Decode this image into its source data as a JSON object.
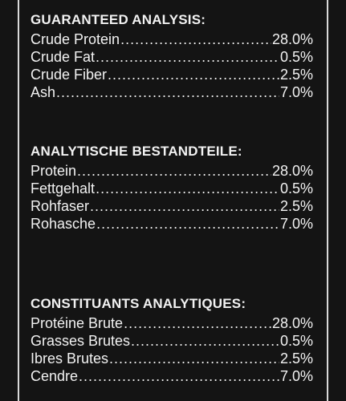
{
  "background_color": "#141414",
  "text_color": "#f2f2f2",
  "sections": [
    {
      "title": "GUARANTEED ANALYSIS:",
      "rows": [
        {
          "label": "Crude Protein",
          "value": "28.0%"
        },
        {
          "label": "Crude Fat",
          "value": "0.5%"
        },
        {
          "label": "Crude Fiber",
          "value": "2.5%"
        },
        {
          "label": "Ash",
          "value": "7.0%"
        }
      ]
    },
    {
      "title": "ANALYTISCHE BESTANDTEILE:",
      "rows": [
        {
          "label": "Protein",
          "value": "28.0%"
        },
        {
          "label": "Fettgehalt",
          "value": "0.5%"
        },
        {
          "label": "Rohfaser",
          "value": "2.5%"
        },
        {
          "label": "Rohasche",
          "value": "7.0%"
        }
      ]
    },
    {
      "title": "CONSTITUANTS ANALYTIQUES:",
      "rows": [
        {
          "label": "Protéine Brute",
          "value": "28.0%"
        },
        {
          "label": "Grasses Brutes",
          "value": "0.5%"
        },
        {
          "label": "Ibres Brutes",
          "value": "2.5%"
        },
        {
          "label": "Cendre",
          "value": "7.0%"
        }
      ]
    }
  ]
}
